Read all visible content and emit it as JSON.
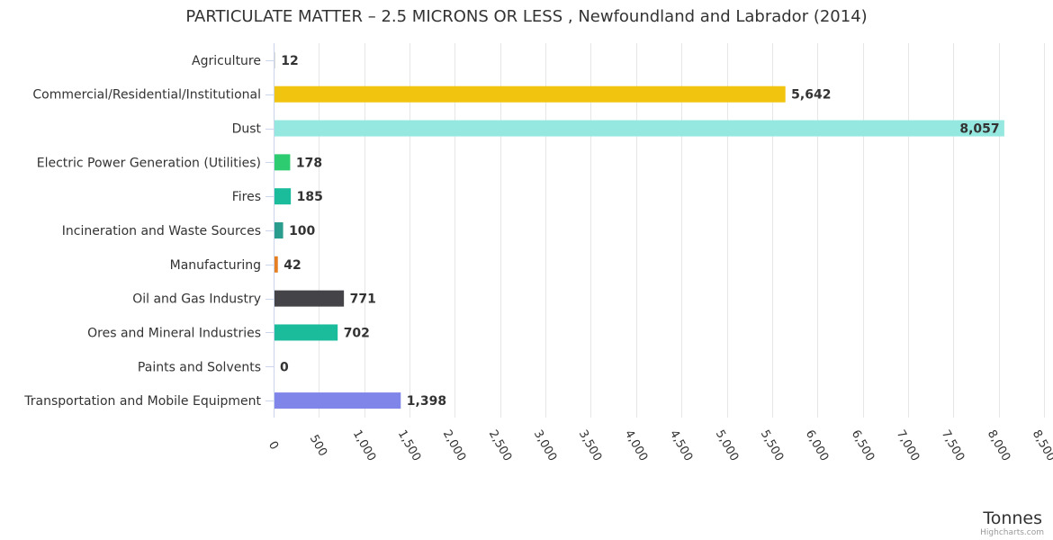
{
  "chart_data": {
    "type": "bar",
    "orientation": "horizontal",
    "title": "PARTICULATE MATTER – 2.5 MICRONS OR LESS , Newfoundland and Labrador (2014)",
    "xlabel": "Tonnes",
    "ylabel": "",
    "xlim": [
      0,
      8500
    ],
    "x_ticks": [
      "0",
      "500",
      "1,000",
      "1,500",
      "2,000",
      "2,500",
      "3,000",
      "3,500",
      "4,000",
      "4,500",
      "5,000",
      "5,500",
      "6,000",
      "6,500",
      "7,000",
      "7,500",
      "8,000",
      "8,500"
    ],
    "x_tick_values": [
      0,
      500,
      1000,
      1500,
      2000,
      2500,
      3000,
      3500,
      4000,
      4500,
      5000,
      5500,
      6000,
      6500,
      7000,
      7500,
      8000,
      8500
    ],
    "grid": true,
    "legend": "none",
    "categories": [
      "Agriculture",
      "Commercial/Residential/Institutional",
      "Dust",
      "Electric Power Generation (Utilities)",
      "Fires",
      "Incineration and Waste Sources",
      "Manufacturing",
      "Oil and Gas Industry",
      "Ores and Mineral Industries",
      "Paints and Solvents",
      "Transportation and Mobile Equipment"
    ],
    "values": [
      12,
      5642,
      8057,
      178,
      185,
      100,
      42,
      771,
      702,
      0,
      1398
    ],
    "value_labels": [
      "12",
      "5,642",
      "8,057",
      "178",
      "185",
      "100",
      "42",
      "771",
      "702",
      "0",
      "1,398"
    ],
    "colors": [
      "#cccccc",
      "#f1c40f",
      "#94e8df",
      "#2ecc71",
      "#1abc9c",
      "#2a9d8f",
      "#e67e22",
      "#434348",
      "#1abc9c",
      "#cccccc",
      "#8085e9"
    ]
  },
  "credits": "Highcharts.com"
}
